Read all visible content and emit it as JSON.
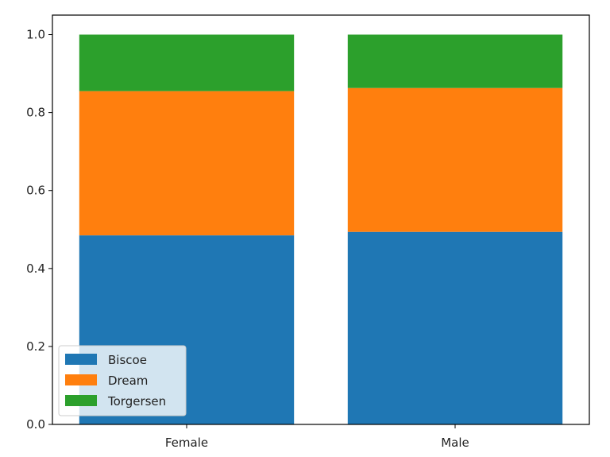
{
  "chart_data": {
    "type": "bar",
    "stacked": true,
    "categories": [
      "Female",
      "Male"
    ],
    "series": [
      {
        "name": "Biscoe",
        "values": [
          0.485,
          0.494
        ],
        "color": "#1f77b4"
      },
      {
        "name": "Dream",
        "values": [
          0.37,
          0.369
        ],
        "color": "#ff7f0e"
      },
      {
        "name": "Torgersen",
        "values": [
          0.145,
          0.137
        ],
        "color": "#2ca02c"
      }
    ],
    "title": "",
    "xlabel": "",
    "ylabel": "",
    "ylim": [
      0,
      1.05
    ],
    "yticks": [
      "0.0",
      "0.2",
      "0.4",
      "0.6",
      "0.8",
      "1.0"
    ],
    "grid": false,
    "legend_position": "lower-left"
  }
}
